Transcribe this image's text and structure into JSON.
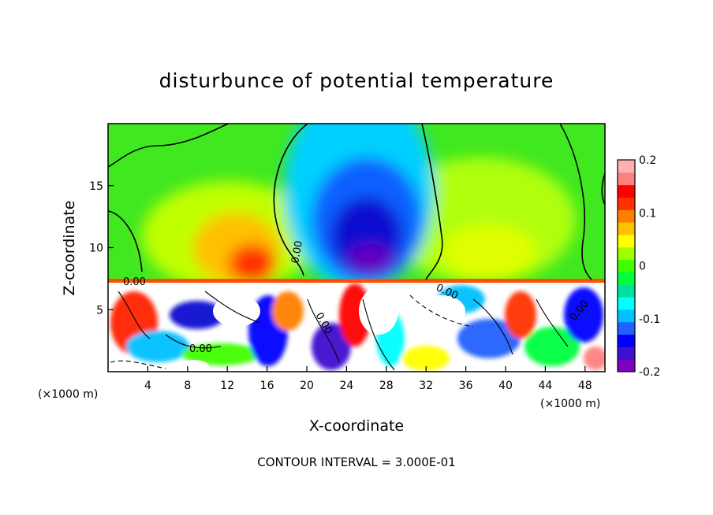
{
  "chart_data": {
    "type": "heatmap",
    "title": "disturbunce of potential temperature",
    "xlabel": "X-coordinate",
    "ylabel": "Z-coordinate",
    "x_unit_left": "(×1000 m)",
    "x_unit_right": "(×1000 m)",
    "xlim": [
      0,
      50
    ],
    "ylim": [
      0,
      20
    ],
    "x_ticks": [
      4,
      8,
      12,
      16,
      20,
      24,
      28,
      32,
      36,
      40,
      44,
      48
    ],
    "y_ticks": [
      5,
      10,
      15
    ],
    "footer": "CONTOUR INTERVAL = 3.000E-01",
    "contour_labels": [
      "0.00",
      "0.00",
      "0.00",
      "0.00",
      "0.00",
      "0.00"
    ],
    "colorbar": {
      "range": [
        -0.2,
        0.2
      ],
      "tick_values": [
        -0.2,
        -0.1,
        0,
        0.1,
        0.2
      ],
      "tick_labels": [
        "-0.2",
        "-0.1",
        "0",
        "0.1",
        "0.2"
      ],
      "colors": [
        "#8000c0",
        "#4010d0",
        "#0000ff",
        "#2060ff",
        "#00c0ff",
        "#00ffff",
        "#00e0a0",
        "#00ff40",
        "#40ff00",
        "#a0ff00",
        "#ffff00",
        "#ffc000",
        "#ff8000",
        "#ff3000",
        "#ff0000",
        "#ff8080",
        "#ffb0b0"
      ]
    },
    "grid": false,
    "legend": "colorbar-right"
  }
}
